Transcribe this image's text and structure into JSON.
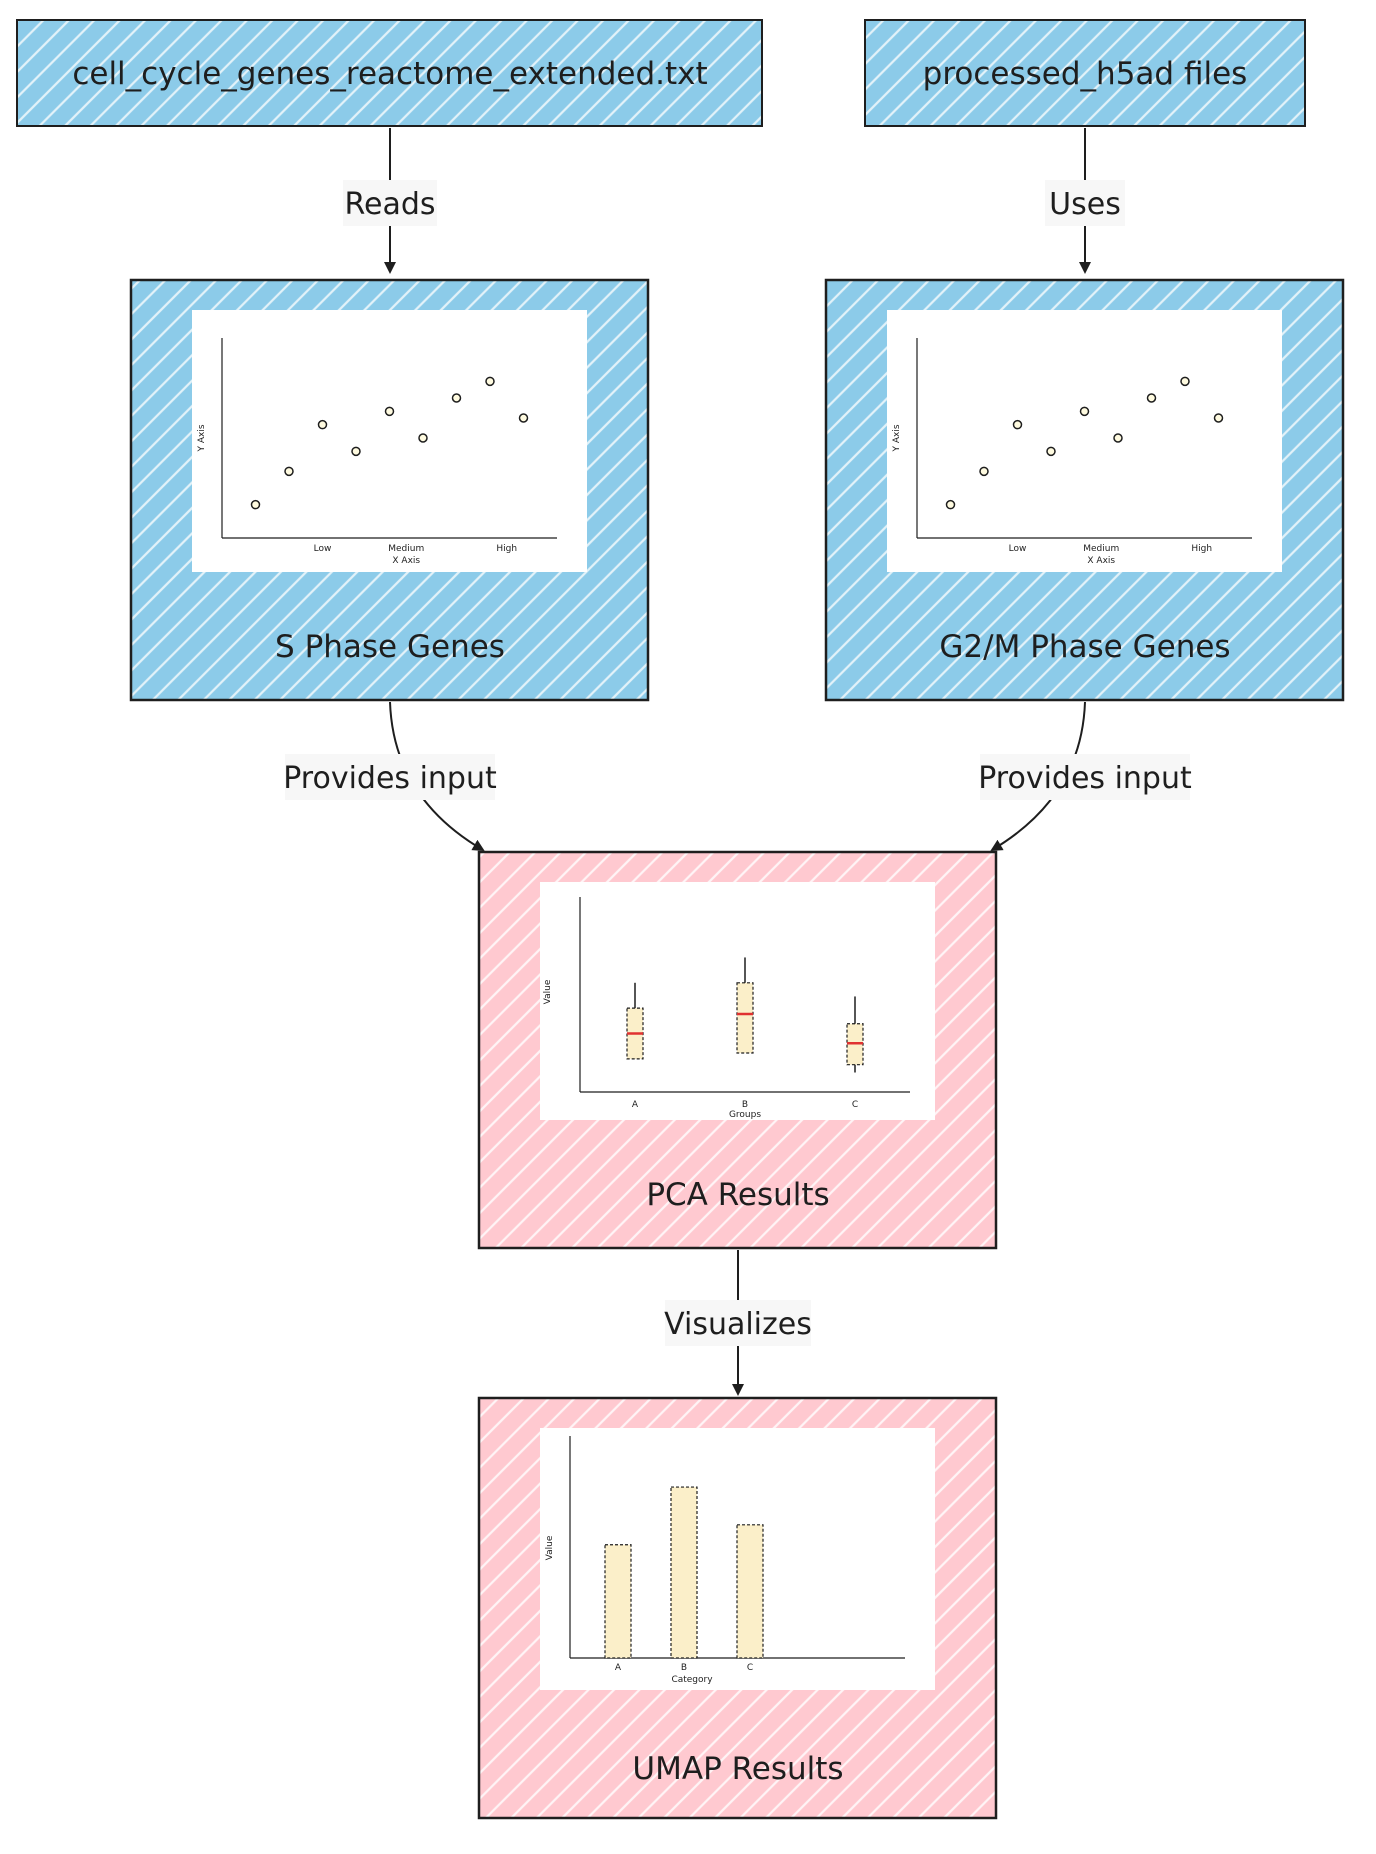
{
  "colors": {
    "blue_fill": "#8ccbe9",
    "pink_fill": "#ffc9d0",
    "stroke": "#1e1e1e",
    "label_bg": "#f7f7f7",
    "bar_fill": "#fbefc9",
    "median": "#e03131"
  },
  "nodes": {
    "file_txt": {
      "label": "cell_cycle_genes_reactome_extended.txt"
    },
    "h5ad": {
      "label": "processed_h5ad files"
    },
    "s_phase": {
      "label": "S Phase Genes"
    },
    "g2m_phase": {
      "label": "G2/M Phase Genes"
    },
    "pca": {
      "label": "PCA Results"
    },
    "umap": {
      "label": "UMAP Results"
    }
  },
  "edges": {
    "reads": {
      "label": "Reads"
    },
    "uses": {
      "label": "Uses"
    },
    "provides_input_left": {
      "label": "Provides input"
    },
    "provides_input_right": {
      "label": "Provides input"
    },
    "visualizes": {
      "label": "Visualizes"
    }
  },
  "charts": {
    "s_phase_scatter": {
      "chart_data": {
        "type": "scatter",
        "xlabel": "X Axis",
        "ylabel": "Y Axis",
        "x_tick_labels": [
          "Low",
          "Medium",
          "High"
        ],
        "x": [
          1,
          2,
          3,
          4,
          5,
          6,
          7,
          8,
          9
        ],
        "y": [
          1.0,
          2.0,
          3.4,
          2.6,
          3.8,
          3.0,
          4.2,
          4.7,
          3.6
        ],
        "xlim": [
          0,
          10
        ],
        "ylim": [
          0,
          6
        ]
      }
    },
    "g2m_phase_scatter": {
      "chart_data": {
        "type": "scatter",
        "xlabel": "X Axis",
        "ylabel": "Y Axis",
        "x_tick_labels": [
          "Low",
          "Medium",
          "High"
        ],
        "x": [
          1,
          2,
          3,
          4,
          5,
          6,
          7,
          8,
          9
        ],
        "y": [
          1.0,
          2.0,
          3.4,
          2.6,
          3.8,
          3.0,
          4.2,
          4.7,
          3.6
        ],
        "xlim": [
          0,
          10
        ],
        "ylim": [
          0,
          6
        ]
      }
    },
    "pca_boxplot": {
      "chart_data": {
        "type": "box",
        "xlabel": "Groups",
        "ylabel": "Value",
        "categories": [
          "A",
          "B",
          "C"
        ],
        "boxes": [
          {
            "name": "A",
            "whisker_low": 1.7,
            "q1": 1.7,
            "median": 3.0,
            "q3": 4.3,
            "whisker_high": 5.6
          },
          {
            "name": "B",
            "whisker_low": 2.0,
            "q1": 2.0,
            "median": 4.0,
            "q3": 5.6,
            "whisker_high": 6.9
          },
          {
            "name": "C",
            "whisker_low": 1.0,
            "q1": 1.4,
            "median": 2.5,
            "q3": 3.5,
            "whisker_high": 4.9
          }
        ],
        "ylim": [
          0,
          10
        ]
      }
    },
    "umap_bar": {
      "chart_data": {
        "type": "bar",
        "xlabel": "Category",
        "ylabel": "Value",
        "categories": [
          "A",
          "B",
          "C"
        ],
        "values": [
          51,
          77,
          60
        ],
        "ylim": [
          0,
          100
        ]
      }
    }
  }
}
